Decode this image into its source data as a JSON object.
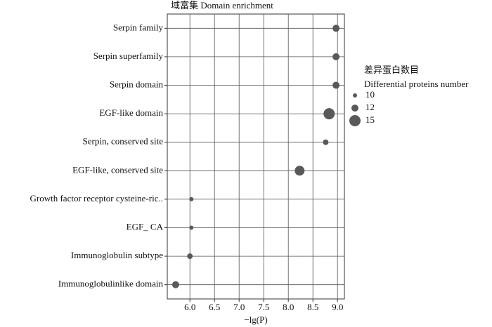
{
  "chart_data": {
    "type": "bubble",
    "title": "域富集  Domain enrichment",
    "x_label": "−lg(P)",
    "categories": [
      "Serpin family",
      "Serpin superfamily",
      "Serpin domain",
      "EGF-like domain",
      "Serpin, conserved site",
      "EGF-like, conserved site",
      "Growth factor receptor cysteine-ric..",
      "EGF_ CA",
      "Immunoglobulin subtype",
      "Immunoglobulinlike domain"
    ],
    "values": [
      8.97,
      8.97,
      8.97,
      8.83,
      8.76,
      8.23,
      6.03,
      6.03,
      6.0,
      5.71
    ],
    "sizes": [
      12,
      12,
      12,
      15,
      11,
      14,
      10,
      10,
      11,
      12
    ],
    "color": "#595959",
    "xlim": [
      5.54,
      9.14
    ],
    "xticks": [
      {
        "value": 6,
        "label": "6.0"
      },
      {
        "value": 6.5,
        "label": "6.5"
      },
      {
        "value": 7,
        "label": "7.0"
      },
      {
        "value": 7.5,
        "label": "7.5"
      },
      {
        "value": 8,
        "label": "8.0"
      },
      {
        "value": 8.5,
        "label": "8.5"
      },
      {
        "value": 9,
        "label": "9.0"
      }
    ],
    "grid": true,
    "legend": {
      "title": [
        "差异蛋白数目",
        "Differential proteins number"
      ],
      "sizes": [
        10,
        12,
        15
      ]
    }
  }
}
